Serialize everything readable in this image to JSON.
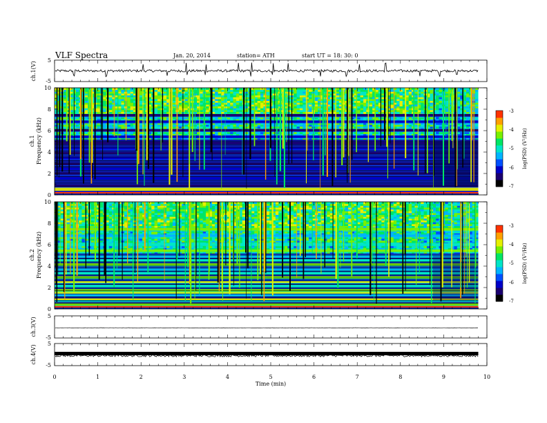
{
  "header": {
    "title": "VLF  Spectra",
    "date": "Jan. 20, 2014",
    "station": "station= ATH",
    "start": "start  UT =   18: 30: 0"
  },
  "chart_data": [
    {
      "panel": "ch1-waveform",
      "type": "line",
      "ylabel": "ch.1(V)",
      "yticks": [
        "5",
        "-5"
      ],
      "ylim": [
        -5,
        5
      ],
      "xlim": [
        0,
        10
      ],
      "data_extent_min": 9.8,
      "baseline": 0.0,
      "noise_amplitude": 0.6,
      "spikes": [
        0.45,
        1.2,
        2.05,
        2.6,
        3.05,
        3.5,
        4.25,
        4.55,
        5.05,
        5.4,
        6.15,
        6.75,
        7.05,
        7.65,
        8.45,
        8.9,
        9.3
      ]
    },
    {
      "panel": "ch1-spectrogram",
      "type": "heatmap",
      "ylabel": "Frequency (kHz)",
      "ylabel2": "ch.1",
      "yticks": [
        "0",
        "2",
        "4",
        "6",
        "8",
        "10"
      ],
      "ylim": [
        0,
        10
      ],
      "xlim": [
        0,
        10
      ],
      "data_extent_min": 9.8,
      "colorbar": {
        "label": "log(PSD) (V²/Hz)",
        "ticks": [
          "-3",
          "-4",
          "-5",
          "-6",
          "-7"
        ],
        "range": [
          -7,
          -3
        ]
      },
      "bands_khz": [
        0.3,
        0.7,
        1.4,
        1.85,
        2.3,
        2.75,
        3.3,
        3.75,
        4.2,
        4.7,
        5.3,
        5.9,
        6.7,
        7.3
      ],
      "spectral_lines_khz": [
        0.2,
        0.45,
        0.6
      ],
      "regime_change_min": 8.75
    },
    {
      "panel": "ch2-spectrogram",
      "type": "heatmap",
      "ylabel": "Frequency (kHz)",
      "ylabel2": "ch.2",
      "yticks": [
        "0",
        "2",
        "4",
        "6",
        "8",
        "10"
      ],
      "ylim": [
        0,
        10
      ],
      "xlim": [
        0,
        10
      ],
      "data_extent_min": 9.8,
      "colorbar": {
        "label": "log(PSD) (V²/Hz)",
        "ticks": [
          "-3",
          "-4",
          "-5",
          "-6",
          "-7"
        ],
        "range": [
          -7,
          -3
        ]
      },
      "bands_khz": [
        0.3,
        0.7,
        1.2,
        1.6,
        2.0,
        2.4,
        2.8,
        3.2,
        3.6,
        4.0,
        4.4,
        4.8,
        5.3,
        5.9,
        6.7,
        7.3
      ],
      "spectral_lines_khz": [
        0.2,
        0.9,
        1.5,
        2.5
      ],
      "regime_change_min": 8.75
    },
    {
      "panel": "ch3-waveform",
      "type": "line",
      "ylabel": "ch.3(V)",
      "yticks": [
        "5",
        "-5"
      ],
      "ylim": [
        -5,
        5
      ],
      "xlim": [
        0,
        10
      ],
      "data_extent_min": 9.8,
      "baseline": -0.4,
      "noise_amplitude": 0.05
    },
    {
      "panel": "ch4-waveform",
      "type": "line",
      "ylabel": "ch.4(V)",
      "yticks": [
        "5",
        "-5"
      ],
      "ylim": [
        -5,
        5
      ],
      "xlim": [
        0,
        10
      ],
      "data_extent_min": 9.8,
      "baseline": -0.5,
      "noise_amplitude": 0.5
    }
  ],
  "xaxis": {
    "label": "Time  (min)",
    "ticks": [
      "0",
      "1",
      "2",
      "3",
      "4",
      "5",
      "6",
      "7",
      "8",
      "9",
      "10"
    ]
  },
  "colors": {
    "colormap": [
      "#000000",
      "#1a0070",
      "#0000c8",
      "#0050ff",
      "#00b4ff",
      "#00e6c8",
      "#00e664",
      "#78f000",
      "#e6f000",
      "#ffa000",
      "#ff3200",
      "#e6e6e6"
    ]
  }
}
